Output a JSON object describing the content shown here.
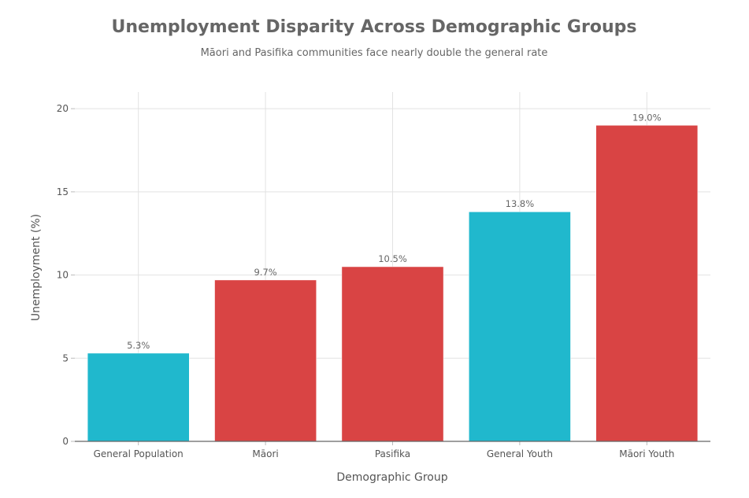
{
  "chart_data": {
    "type": "bar",
    "title": "Unemployment Disparity Across Demographic Groups",
    "subtitle": "Māori and Pasifika communities face nearly double the general rate",
    "xlabel": "Demographic Group",
    "ylabel": "Unemployment (%)",
    "categories": [
      "General Population",
      "Māori",
      "Pasifika",
      "General Youth",
      "Māori Youth"
    ],
    "values": [
      5.3,
      9.7,
      10.5,
      13.8,
      19.0
    ],
    "data_labels": [
      "5.3%",
      "9.7%",
      "10.5%",
      "13.8%",
      "19.0%"
    ],
    "bar_colors": [
      "#20B8CD",
      "#D94444",
      "#D94444",
      "#20B8CD",
      "#D94444"
    ],
    "yticks": [
      0,
      5,
      10,
      15,
      20
    ],
    "ylim": [
      0,
      21
    ],
    "grid": true
  }
}
